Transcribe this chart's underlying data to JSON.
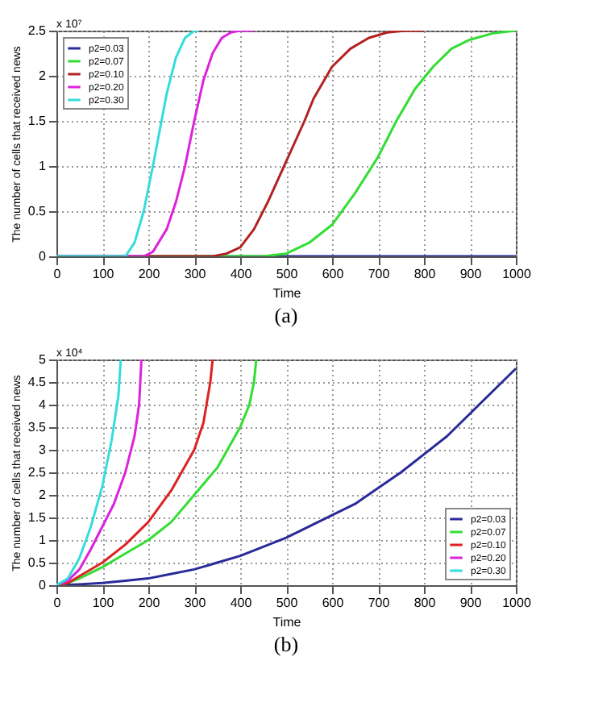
{
  "chart_data": [
    {
      "type": "line",
      "title": "(a)",
      "xlabel": "Time",
      "ylabel": "The number of cells that received news",
      "annotations": [
        "x 10⁷"
      ],
      "xlim": [
        0,
        1000
      ],
      "xticks": [
        0,
        100,
        200,
        300,
        400,
        500,
        600,
        700,
        800,
        900,
        1000
      ],
      "ylim": [
        0,
        2.5
      ],
      "yticks": [
        0,
        0.5,
        1,
        1.5,
        2,
        2.5
      ],
      "grid": true,
      "legend": "top left",
      "line_style": "solid",
      "marker": "none",
      "series": [
        {
          "name": "p2=0.03",
          "color": "#2a2a9a",
          "x": [
            0,
            250,
            500,
            750,
            1000
          ],
          "values": [
            0,
            0,
            0,
            0,
            0
          ]
        },
        {
          "name": "p2=0.07",
          "color": "#33dd33",
          "x": [
            0,
            450,
            500,
            550,
            600,
            650,
            700,
            740,
            780,
            820,
            860,
            900,
            950,
            1000
          ],
          "values": [
            0,
            0,
            0.03,
            0.15,
            0.35,
            0.7,
            1.1,
            1.5,
            1.85,
            2.1,
            2.3,
            2.4,
            2.47,
            2.5
          ]
        },
        {
          "name": "p2=0.10",
          "color": "#b22222",
          "x": [
            0,
            340,
            370,
            400,
            430,
            460,
            500,
            540,
            560,
            600,
            640,
            680,
            720,
            760,
            800
          ],
          "values": [
            0,
            0,
            0.03,
            0.1,
            0.3,
            0.6,
            1.05,
            1.5,
            1.75,
            2.1,
            2.3,
            2.42,
            2.48,
            2.5,
            2.5
          ]
        },
        {
          "name": "p2=0.20",
          "color": "#dd22dd",
          "x": [
            0,
            190,
            210,
            240,
            260,
            280,
            300,
            320,
            340,
            360,
            380,
            400,
            430
          ],
          "values": [
            0,
            0,
            0.05,
            0.3,
            0.6,
            1.0,
            1.5,
            1.95,
            2.25,
            2.42,
            2.48,
            2.5,
            2.5
          ]
        },
        {
          "name": "p2=0.30",
          "color": "#33dddd",
          "x": [
            0,
            150,
            170,
            190,
            210,
            225,
            240,
            260,
            280,
            300,
            310
          ],
          "values": [
            0,
            0,
            0.15,
            0.5,
            1.0,
            1.4,
            1.8,
            2.2,
            2.42,
            2.5,
            2.5
          ]
        }
      ]
    },
    {
      "type": "line",
      "title": "(b)",
      "xlabel": "Time",
      "ylabel": "The number of cells that received news",
      "annotations": [
        "x 10⁴"
      ],
      "xlim": [
        0,
        1000
      ],
      "xticks": [
        0,
        100,
        200,
        300,
        400,
        500,
        600,
        700,
        800,
        900,
        1000
      ],
      "ylim": [
        0,
        5
      ],
      "yticks": [
        0,
        0.5,
        1,
        1.5,
        2,
        2.5,
        3,
        3.5,
        4,
        4.5,
        5
      ],
      "grid": true,
      "legend": "bottom right",
      "line_style": "solid",
      "marker": "none",
      "series": [
        {
          "name": "p2=0.03",
          "color": "#2a2a9a",
          "x": [
            0,
            50,
            100,
            150,
            200,
            250,
            300,
            350,
            400,
            450,
            500,
            550,
            600,
            650,
            700,
            750,
            800,
            850,
            900,
            950,
            1000
          ],
          "values": [
            0,
            0.02,
            0.05,
            0.1,
            0.15,
            0.25,
            0.35,
            0.5,
            0.65,
            0.85,
            1.05,
            1.3,
            1.55,
            1.8,
            2.15,
            2.5,
            2.9,
            3.3,
            3.8,
            4.3,
            4.8
          ]
        },
        {
          "name": "p2=0.07",
          "color": "#33dd33",
          "x": [
            0,
            25,
            50,
            100,
            150,
            200,
            250,
            300,
            350,
            400,
            420,
            430,
            435
          ],
          "values": [
            0,
            0.05,
            0.15,
            0.4,
            0.7,
            1.0,
            1.4,
            2.0,
            2.6,
            3.5,
            4.0,
            4.5,
            5.0
          ]
        },
        {
          "name": "p2=0.10",
          "color": "#dd2222",
          "x": [
            0,
            25,
            50,
            100,
            150,
            200,
            250,
            300,
            320,
            335,
            340
          ],
          "values": [
            0,
            0.05,
            0.2,
            0.5,
            0.9,
            1.4,
            2.1,
            3.0,
            3.6,
            4.5,
            5.0
          ]
        },
        {
          "name": "p2=0.20",
          "color": "#dd22dd",
          "x": [
            0,
            25,
            50,
            75,
            100,
            125,
            150,
            170,
            180,
            185
          ],
          "values": [
            0,
            0.1,
            0.35,
            0.8,
            1.3,
            1.8,
            2.5,
            3.3,
            4.0,
            5.0
          ]
        },
        {
          "name": "p2=0.30",
          "color": "#33dddd",
          "x": [
            0,
            25,
            50,
            75,
            100,
            120,
            135,
            140
          ],
          "values": [
            0,
            0.15,
            0.6,
            1.3,
            2.2,
            3.2,
            4.2,
            5.0
          ]
        }
      ]
    }
  ]
}
